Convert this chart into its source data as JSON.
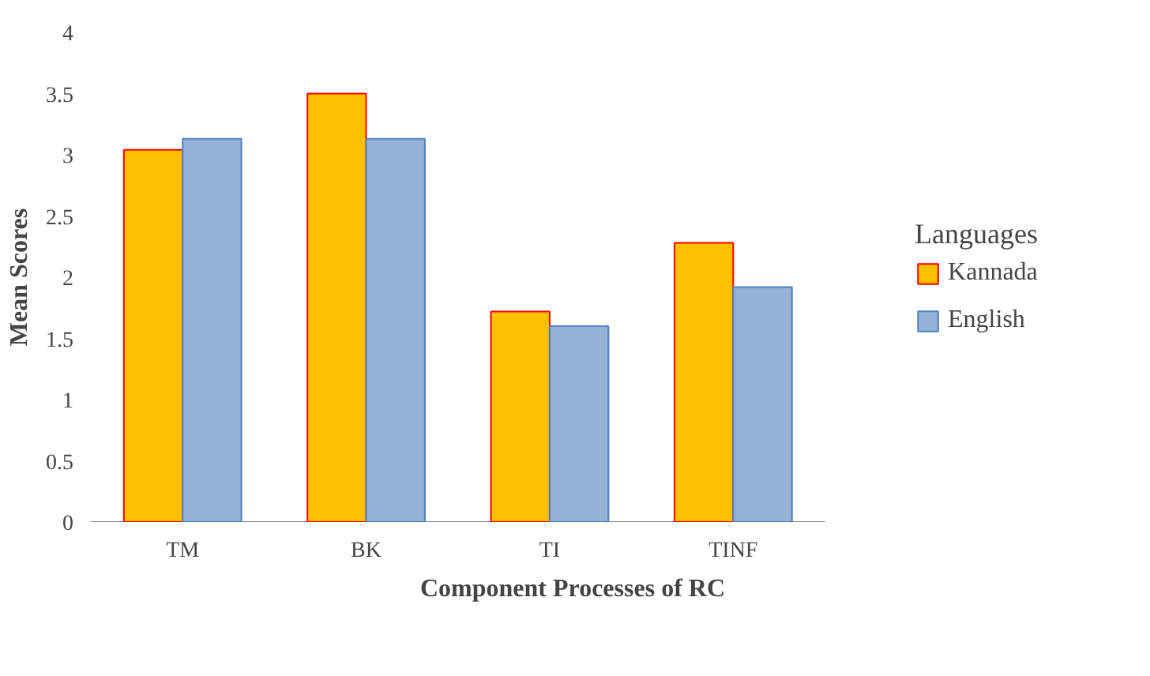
{
  "chart_data": {
    "type": "bar",
    "xlabel": "Component Processes of RC",
    "ylabel": "Mean Scores",
    "legend_title": "Languages",
    "categories": [
      "TM",
      "BK",
      "TI",
      "TINF"
    ],
    "series": [
      {
        "name": "Kannada",
        "color": "#ffc000",
        "values": [
          3.04,
          3.5,
          1.72,
          2.28
        ]
      },
      {
        "name": "English",
        "color": "#95b3d7",
        "values": [
          3.13,
          3.13,
          1.6,
          1.92
        ]
      }
    ],
    "ylim": [
      0,
      4
    ],
    "yticks": [
      0,
      0.5,
      1,
      1.5,
      2,
      2.5,
      3,
      3.5,
      4
    ],
    "grid": false,
    "legend": "right"
  }
}
